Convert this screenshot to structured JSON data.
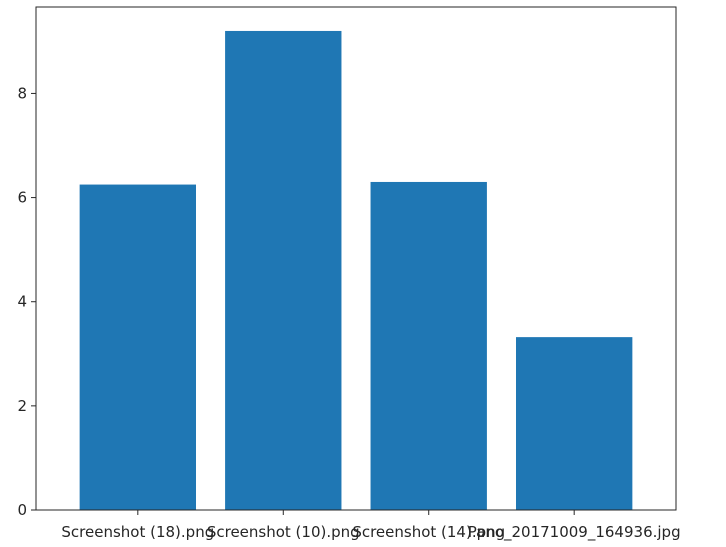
{
  "chart_data": {
    "type": "bar",
    "categories": [
      "Screenshot (18).png",
      "Screenshot (10).png",
      "Screenshot (14).png",
      "Pano_20171009_164936.jpg"
    ],
    "values": [
      6.25,
      9.2,
      6.3,
      3.32
    ],
    "title": "",
    "xlabel": "",
    "ylabel": "",
    "ylim": [
      0,
      9.66
    ],
    "yticks": [
      0,
      2,
      4,
      6,
      8
    ],
    "grid": false,
    "legend": "none",
    "bar_color": "#1f77b4",
    "axis_color": "#262626"
  }
}
